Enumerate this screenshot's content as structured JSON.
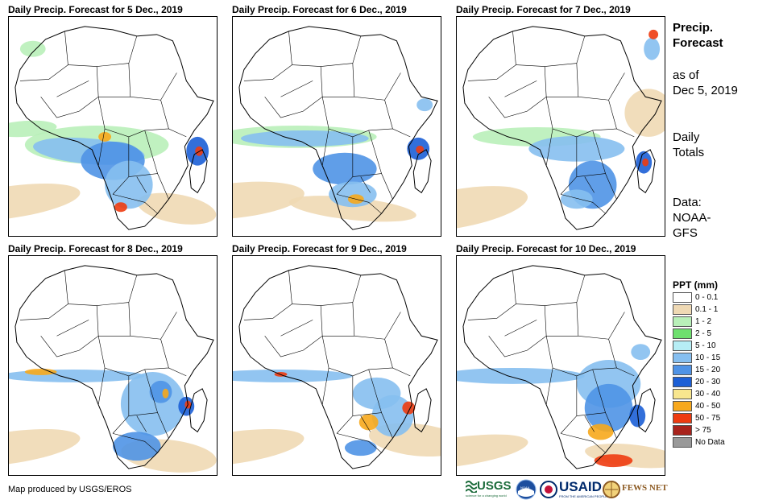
{
  "panels": [
    {
      "title": "Daily Precip. Forecast for 5 Dec., 2019"
    },
    {
      "title": "Daily Precip. Forecast for 6 Dec., 2019"
    },
    {
      "title": "Daily Precip. Forecast for 7 Dec., 2019"
    },
    {
      "title": "Daily Precip. Forecast for 8 Dec., 2019"
    },
    {
      "title": "Daily Precip. Forecast for 9 Dec., 2019"
    },
    {
      "title": "Daily Precip. Forecast for 10 Dec., 2019"
    }
  ],
  "sidebar": {
    "title_line1": "Precip.",
    "title_line2": "Forecast",
    "asof_line1": "as of",
    "asof_line2": "Dec 5, 2019",
    "daily_line1": "Daily",
    "daily_line2": "Totals",
    "data_line1": "Data:",
    "data_line2": "NOAA-",
    "data_line3": "GFS"
  },
  "legend": {
    "title": "PPT (mm)",
    "items": [
      {
        "label": "0 - 0.1",
        "color": "#ffffff"
      },
      {
        "label": "0.1 - 1",
        "color": "#efd9b4"
      },
      {
        "label": "1 - 2",
        "color": "#b9f0b9"
      },
      {
        "label": "2 - 5",
        "color": "#6ee06e"
      },
      {
        "label": "5 - 10",
        "color": "#b6eef5"
      },
      {
        "label": "10 - 15",
        "color": "#86bff0"
      },
      {
        "label": "15 - 20",
        "color": "#4f93e6"
      },
      {
        "label": "20 - 30",
        "color": "#1c5fd6"
      },
      {
        "label": "30 - 40",
        "color": "#f8e68e"
      },
      {
        "label": "40 - 50",
        "color": "#f7a81c"
      },
      {
        "label": "50 - 75",
        "color": "#ee3b10"
      },
      {
        "label": "> 75",
        "color": "#a8231c"
      },
      {
        "label": "No Data",
        "color": "#999999"
      }
    ]
  },
  "footer": {
    "credit": "Map produced by USGS/EROS"
  },
  "logos": {
    "usgs": "USGS",
    "usgs_tagline": "science for a changing world",
    "noaa": "NOAA",
    "usaid": "USAID",
    "usaid_tagline": "FROM THE AMERICAN PEOPLE",
    "fewsnet": "FEWS NET"
  }
}
